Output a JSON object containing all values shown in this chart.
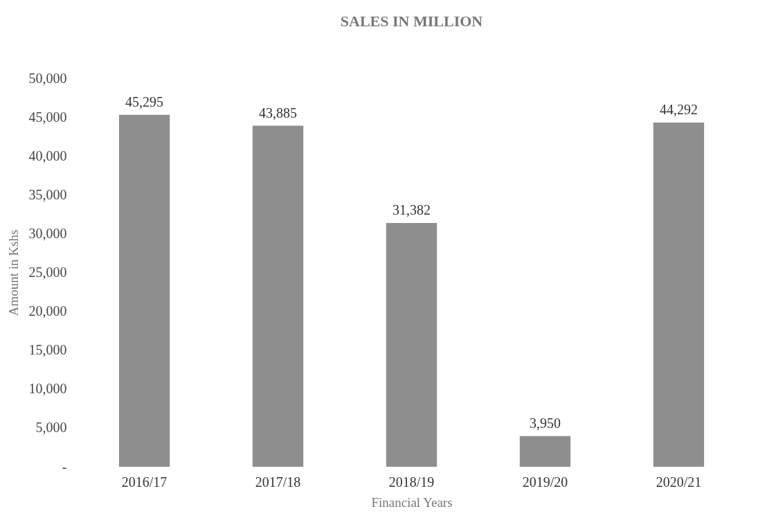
{
  "chart_data": {
    "type": "bar",
    "title": "SALES IN MILLION",
    "xlabel": "Financial Years",
    "ylabel": "Amount in Kshs",
    "categories": [
      "2016/17",
      "2017/18",
      "2018/19",
      "2019/20",
      "2020/21"
    ],
    "values": [
      45295,
      43885,
      31382,
      3950,
      44292
    ],
    "color": "#8e8e8e",
    "ylim": [
      0,
      50000
    ],
    "yticks": [
      {
        "value": 0,
        "label": "-"
      },
      {
        "value": 5000,
        "label": "5,000"
      },
      {
        "value": 10000,
        "label": "10,000"
      },
      {
        "value": 15000,
        "label": "15,000"
      },
      {
        "value": 20000,
        "label": "20,000"
      },
      {
        "value": 25000,
        "label": "25,000"
      },
      {
        "value": 30000,
        "label": "30,000"
      },
      {
        "value": 35000,
        "label": "35,000"
      },
      {
        "value": 40000,
        "label": "40,000"
      },
      {
        "value": 45000,
        "label": "45,000"
      },
      {
        "value": 50000,
        "label": "50,000"
      }
    ],
    "value_labels": [
      "45,295",
      "43,885",
      "31,382",
      "3,950",
      "44,292"
    ],
    "grid": false
  }
}
